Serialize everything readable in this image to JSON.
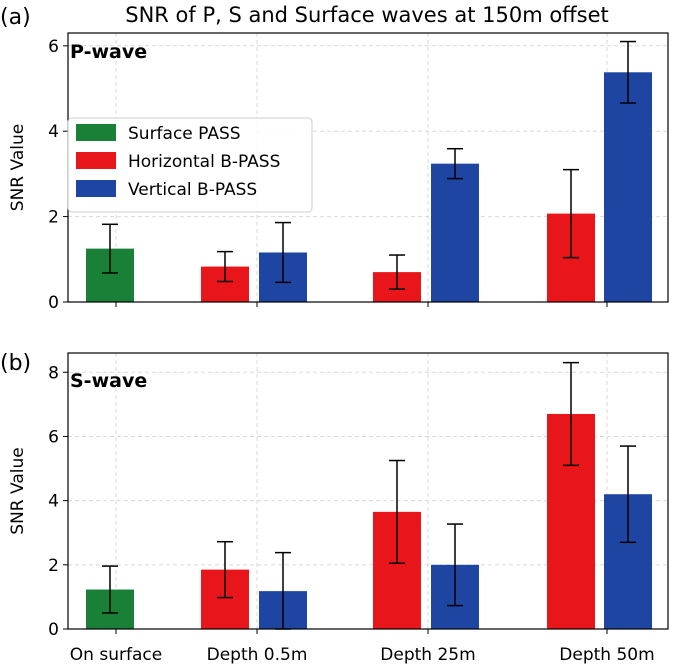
{
  "figure": {
    "title": "SNR of P, S and Surface waves at 150m offset"
  },
  "chart_data": [
    {
      "type": "bar",
      "panel_label": "(a)",
      "panel_title": "P-wave",
      "title": "SNR of P, S and Surface waves at 150m offset",
      "xlabel": "",
      "ylabel": "SNR Value",
      "ylim": [
        0,
        6.3
      ],
      "yticks": [
        0,
        2,
        4,
        6
      ],
      "grid": true,
      "legend_position": "center-left",
      "categories": [
        "On surface",
        "Depth 0.5m",
        "Depth 25m",
        "Depth 50m"
      ],
      "series": [
        {
          "name": "Surface PASS",
          "color": "#1a7f37",
          "values": [
            1.25,
            null,
            null,
            null
          ],
          "errors": [
            0.57,
            null,
            null,
            null
          ]
        },
        {
          "name": "Horizontal B-PASS",
          "color": "#e8161b",
          "values": [
            null,
            0.83,
            0.7,
            2.07
          ],
          "errors": [
            null,
            0.35,
            0.4,
            1.03
          ]
        },
        {
          "name": "Vertical B-PASS",
          "color": "#1f45a3",
          "values": [
            null,
            1.16,
            3.24,
            5.38
          ],
          "errors": [
            null,
            0.7,
            0.35,
            0.72
          ]
        }
      ]
    },
    {
      "type": "bar",
      "panel_label": "(b)",
      "panel_title": "S-wave",
      "xlabel": "",
      "ylabel": "SNR Value",
      "ylim": [
        0,
        8.6
      ],
      "yticks": [
        0,
        2,
        4,
        6,
        8
      ],
      "grid": true,
      "categories": [
        "On surface",
        "Depth 0.5m",
        "Depth 25m",
        "Depth 50m"
      ],
      "series": [
        {
          "name": "Surface PASS",
          "color": "#1a7f37",
          "values": [
            1.23,
            null,
            null,
            null
          ],
          "errors": [
            0.73,
            null,
            null,
            null
          ]
        },
        {
          "name": "Horizontal B-PASS",
          "color": "#e8161b",
          "values": [
            null,
            1.85,
            3.65,
            6.7
          ],
          "errors": [
            null,
            0.87,
            1.6,
            1.6
          ]
        },
        {
          "name": "Vertical B-PASS",
          "color": "#1f45a3",
          "values": [
            null,
            1.18,
            2.0,
            4.2
          ],
          "errors": [
            null,
            1.2,
            1.27,
            1.5
          ]
        }
      ]
    }
  ]
}
